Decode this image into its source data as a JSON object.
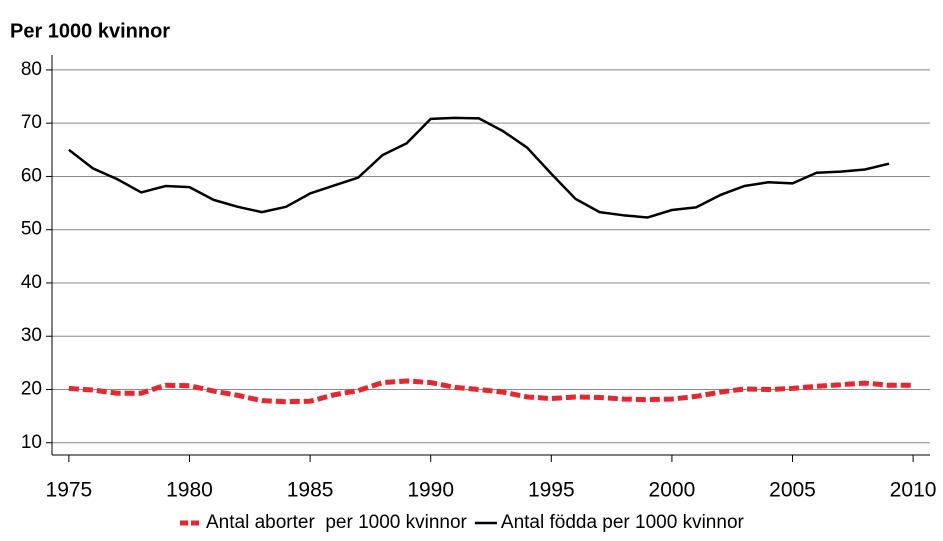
{
  "chart_data": {
    "type": "line",
    "title": "Per 1000 kvinnor",
    "x": [
      1975,
      1976,
      1977,
      1978,
      1979,
      1980,
      1981,
      1982,
      1983,
      1984,
      1985,
      1986,
      1987,
      1988,
      1989,
      1990,
      1991,
      1992,
      1993,
      1994,
      1995,
      1996,
      1997,
      1998,
      1999,
      2000,
      2001,
      2002,
      2003,
      2004,
      2005,
      2006,
      2007,
      2008,
      2009,
      2010
    ],
    "series": [
      {
        "name": "Antal aborter  per 1000 kvinnor",
        "color": "#e8262d",
        "dashed": true,
        "values": [
          20.2,
          19.9,
          19.3,
          19.3,
          20.8,
          20.7,
          19.7,
          18.9,
          17.9,
          17.7,
          17.8,
          19.0,
          19.8,
          21.3,
          21.6,
          21.3,
          20.4,
          20.0,
          19.5,
          18.6,
          18.3,
          18.6,
          18.5,
          18.2,
          18.1,
          18.2,
          18.7,
          19.5,
          20.1,
          20.0,
          20.2,
          20.6,
          20.9,
          21.2,
          20.8,
          20.8
        ]
      },
      {
        "name": "Antal födda per 1000 kvinnor",
        "color": "#000000",
        "dashed": false,
        "values": [
          65,
          61.5,
          59.5,
          57,
          58.2,
          58,
          55.6,
          54.3,
          53.3,
          54.3,
          56.8,
          58.3,
          59.8,
          64,
          66.2,
          70.8,
          71,
          70.9,
          68.5,
          65.4,
          60.5,
          55.8,
          53.3,
          52.7,
          52.3,
          53.7,
          54.2,
          56.5,
          58.2,
          58.9,
          58.7,
          60.7,
          60.9,
          61.3,
          62.4,
          null
        ]
      }
    ],
    "xlim": [
      1974.3,
      2010.7
    ],
    "xticks": [
      1975,
      1980,
      1985,
      1990,
      1995,
      2000,
      2005,
      2010
    ],
    "ylim": [
      7.7,
      82.8
    ],
    "yticks": [
      10,
      20,
      30,
      40,
      50,
      60,
      70,
      80
    ],
    "grid": true
  }
}
